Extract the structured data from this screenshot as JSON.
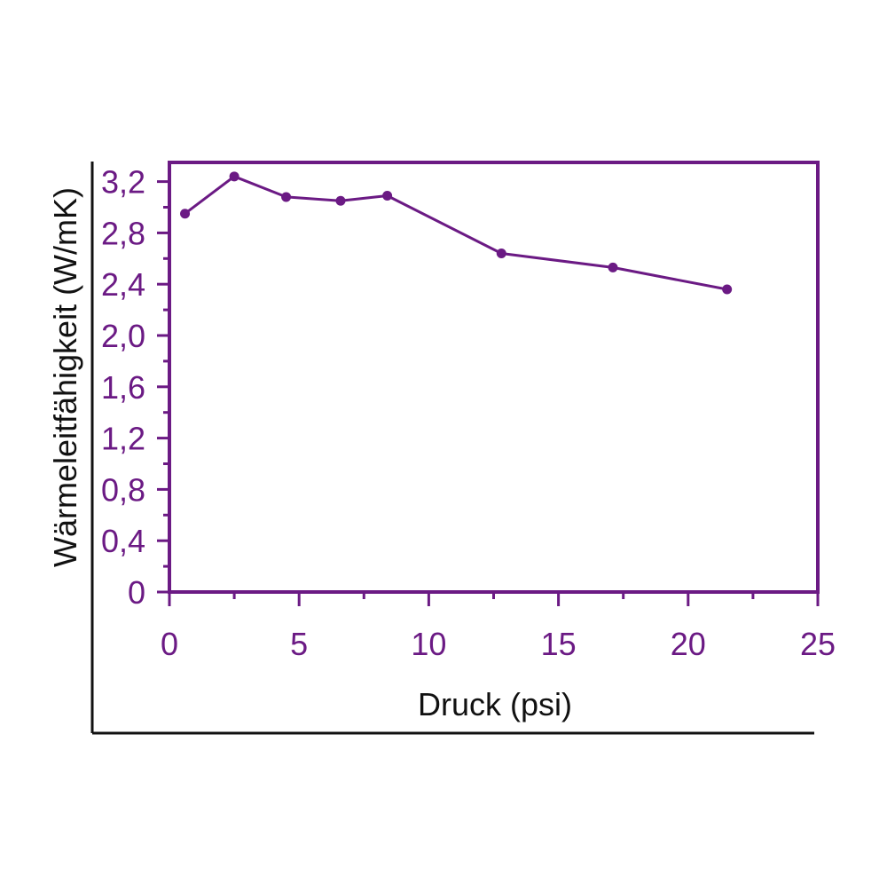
{
  "colors": {
    "accent": "#6b1a84",
    "frame": "#111111",
    "background": "#ffffff"
  },
  "chart_data": {
    "type": "line",
    "xlabel": "Druck (psi)",
    "ylabel": "Wärmeleitfähigkeit (W/mK)",
    "xlim": [
      0,
      25
    ],
    "ylim": [
      0,
      3.35
    ],
    "x_ticks": [
      0,
      5,
      10,
      15,
      20,
      25
    ],
    "x_tick_labels": [
      "0",
      "5",
      "10",
      "15",
      "20",
      "25"
    ],
    "y_ticks": [
      0,
      0.4,
      0.8,
      1.2,
      1.6,
      2.0,
      2.4,
      2.8,
      3.2
    ],
    "y_tick_labels": [
      "0",
      "0,4",
      "0,8",
      "1,2",
      "1,6",
      "2,0",
      "2,4",
      "2,8",
      "3,2"
    ],
    "x_minor_step": 2.5,
    "y_minor_step": 0.2,
    "grid": false,
    "legend": "none",
    "series": [
      {
        "x": [
          0.6,
          2.5,
          4.5,
          6.6,
          8.4,
          12.8,
          17.1,
          21.5
        ],
        "y": [
          2.95,
          3.24,
          3.08,
          3.05,
          3.09,
          2.64,
          2.53,
          2.36
        ]
      }
    ]
  }
}
